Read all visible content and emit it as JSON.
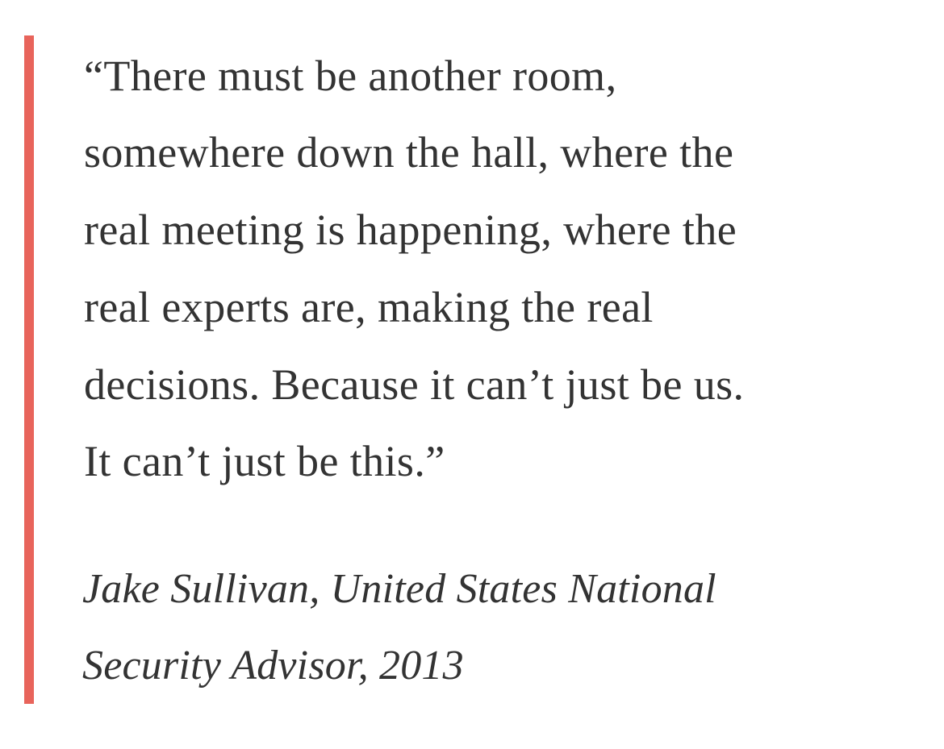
{
  "quote": {
    "lines": [
      "“There must be another room,",
      "somewhere down the hall, where the",
      "real meeting is happening, where the",
      "real experts are, making the real",
      "decisions. Because it can’t just be us.",
      "It can’t just be this.”"
    ]
  },
  "attribution": {
    "lines": [
      "Jake Sullivan, United States National",
      "Security Advisor, 2013"
    ]
  },
  "colors": {
    "accent_bar": "#e8645b",
    "text": "#333333",
    "background": "#ffffff"
  }
}
